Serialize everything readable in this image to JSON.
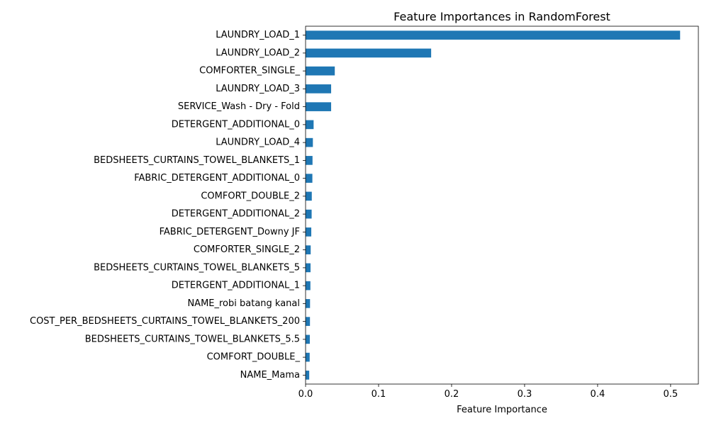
{
  "chart_data": {
    "type": "bar",
    "orientation": "horizontal",
    "title": "Feature Importances in RandomForest",
    "xlabel": "Feature Importance",
    "ylabel": "",
    "xlim": [
      0,
      0.538
    ],
    "xticks": [
      0.0,
      0.1,
      0.2,
      0.3,
      0.4,
      0.5
    ],
    "xtick_labels": [
      "0.0",
      "0.1",
      "0.2",
      "0.3",
      "0.4",
      "0.5"
    ],
    "grid": false,
    "legend": "none",
    "bar_color": "#1f77b4",
    "categories": [
      "LAUNDRY_LOAD_1",
      "LAUNDRY_LOAD_2",
      "COMFORTER_SINGLE_",
      "LAUNDRY_LOAD_3",
      "SERVICE_Wash - Dry - Fold",
      "DETERGENT_ADDITIONAL_0",
      "LAUNDRY_LOAD_4",
      "BEDSHEETS_CURTAINS_TOWEL_BLANKETS_1",
      "FABRIC_DETERGENT_ADDITIONAL_0",
      "COMFORT_DOUBLE_2",
      "DETERGENT_ADDITIONAL_2",
      "FABRIC_DETERGENT_Downy JF",
      "COMFORTER_SINGLE_2",
      "BEDSHEETS_CURTAINS_TOWEL_BLANKETS_5",
      "DETERGENT_ADDITIONAL_1",
      "NAME_robi batang kanal",
      "COST_PER_BEDSHEETS_CURTAINS_TOWEL_BLANKETS_200",
      "BEDSHEETS_CURTAINS_TOWEL_BLANKETS_5.5",
      "COMFORT_DOUBLE_",
      "NAME_Mama"
    ],
    "values": [
      0.513,
      0.172,
      0.04,
      0.035,
      0.035,
      0.011,
      0.01,
      0.0095,
      0.0093,
      0.0085,
      0.0083,
      0.0078,
      0.007,
      0.0068,
      0.0066,
      0.0061,
      0.006,
      0.0058,
      0.0056,
      0.005
    ]
  }
}
